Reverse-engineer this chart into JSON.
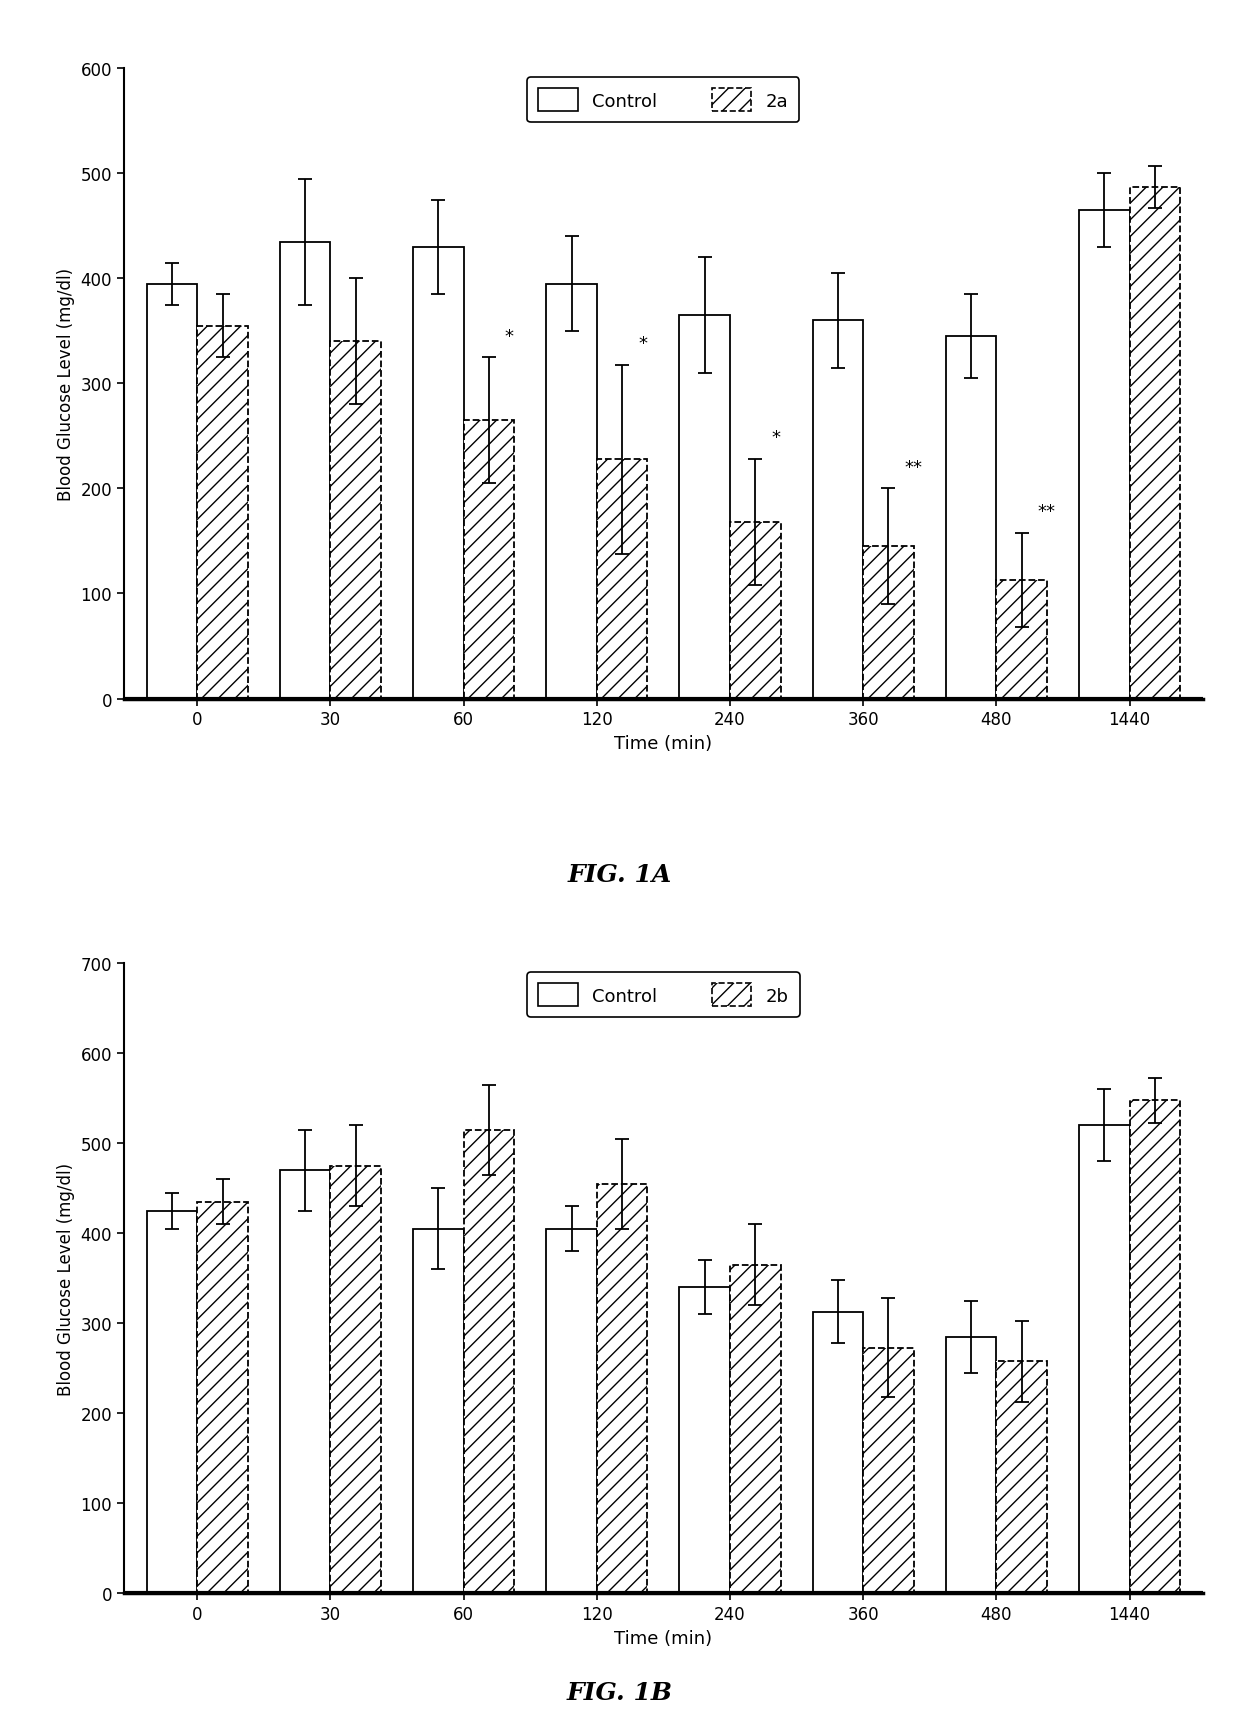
{
  "fig1a": {
    "title": "FIG. 1A",
    "ylabel": "Blood Glucose Level (mg/dl)",
    "xlabel": "Time (min)",
    "ylim": [
      0,
      600
    ],
    "yticks": [
      0,
      100,
      200,
      300,
      400,
      500,
      600
    ],
    "time_labels": [
      "0",
      "30",
      "60",
      "120",
      "240",
      "360",
      "480",
      "1440"
    ],
    "control_values": [
      395,
      435,
      430,
      395,
      365,
      360,
      345,
      465
    ],
    "control_errors": [
      20,
      60,
      45,
      45,
      55,
      45,
      40,
      35
    ],
    "treatment_values": [
      355,
      340,
      265,
      228,
      168,
      145,
      113,
      487
    ],
    "treatment_errors": [
      30,
      60,
      60,
      90,
      60,
      55,
      45,
      20
    ],
    "significance": [
      "",
      "",
      "*",
      "*",
      "*",
      "**",
      "**",
      ""
    ],
    "legend_label1": "Control",
    "legend_label2": "2a"
  },
  "fig1b": {
    "title": "FIG. 1B",
    "ylabel": "Blood Glucose Level (mg/dl)",
    "xlabel": "Time (min)",
    "ylim": [
      0,
      700
    ],
    "yticks": [
      0,
      100,
      200,
      300,
      400,
      500,
      600,
      700
    ],
    "time_labels": [
      "0",
      "30",
      "60",
      "120",
      "240",
      "360",
      "480",
      "1440"
    ],
    "control_values": [
      425,
      470,
      405,
      405,
      340,
      313,
      285,
      520
    ],
    "control_errors": [
      20,
      45,
      45,
      25,
      30,
      35,
      40,
      40
    ],
    "treatment_values": [
      435,
      475,
      515,
      455,
      365,
      273,
      258,
      548
    ],
    "treatment_errors": [
      25,
      45,
      50,
      50,
      45,
      55,
      45,
      25
    ],
    "significance": [
      "",
      "",
      "",
      "",
      "",
      "",
      "",
      ""
    ],
    "legend_label1": "Control",
    "legend_label2": "2b"
  },
  "bar_width": 0.38,
  "control_color": "#ffffff",
  "control_edge": "#000000",
  "treatment_hatch": "//",
  "treatment_color": "#ffffff",
  "treatment_edge": "#000000",
  "fig_bg": "#ffffff"
}
